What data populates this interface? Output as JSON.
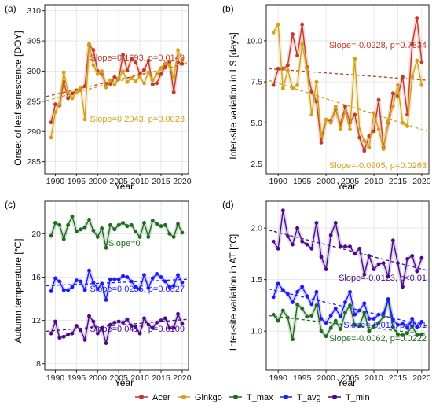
{
  "legend": {
    "items": [
      {
        "label": "Acer",
        "color": "#c0392b"
      },
      {
        "label": "Ginkgo",
        "color": "#d4a017"
      },
      {
        "label": "T_max",
        "color": "#1e6b1e"
      },
      {
        "label": "T_avg",
        "color": "#1a1aff"
      },
      {
        "label": "T_min",
        "color": "#4b0a8c"
      }
    ]
  },
  "chart_data": [
    {
      "panel": "(a)",
      "type": "line",
      "xlabel": "Year",
      "ylabel": "Onset of leaf senescence [DOY]",
      "xlim": [
        1987.5,
        2021.5
      ],
      "ylim": [
        283,
        311
      ],
      "xticks": [
        1990,
        1995,
        2000,
        2005,
        2010,
        2015,
        2020
      ],
      "yticks": [
        285,
        290,
        295,
        300,
        305,
        310
      ],
      "x": [
        1989,
        1990,
        1991,
        1992,
        1993,
        1994,
        1995,
        1996,
        1997,
        1998,
        1999,
        2000,
        2001,
        2002,
        2003,
        2004,
        2005,
        2006,
        2007,
        2008,
        2009,
        2010,
        2011,
        2012,
        2013,
        2014,
        2015,
        2016,
        2017,
        2018,
        2019,
        2020
      ],
      "series": [
        {
          "name": "Acer",
          "color": "#c0392b",
          "values": [
            291.5,
            294.5,
            294.3,
            298.2,
            295.5,
            296.3,
            296.8,
            297.0,
            297.5,
            304.3,
            303.5,
            300.0,
            299.5,
            297.8,
            297.9,
            299.0,
            298.7,
            302.7,
            300.1,
            302.0,
            301.5,
            299.5,
            300.2,
            301.7,
            297.8,
            298.0,
            299.5,
            300.8,
            301.5,
            296.5,
            301.5,
            301.2
          ]
        },
        {
          "name": "Ginkgo",
          "color": "#d4a017",
          "values": [
            289.0,
            293.2,
            294.5,
            299.8,
            296.5,
            295.5,
            296.5,
            297.3,
            292.0,
            304.5,
            301.0,
            299.5,
            300.0,
            297.3,
            298.5,
            297.8,
            298.8,
            300.0,
            298.2,
            298.8,
            298.3,
            299.0,
            298.0,
            299.8,
            298.5,
            299.5,
            300.5,
            301.3,
            301.0,
            299.0,
            303.5,
            301.8
          ]
        }
      ],
      "trends": [
        {
          "series": "Acer",
          "color": "#c0392b",
          "start": 295.8,
          "end": 301.2
        },
        {
          "series": "Ginkgo",
          "color": "#d4a017",
          "start": 295.1,
          "end": 301.4
        }
      ],
      "annotations": [
        {
          "text": "Slope=0.1693, p=0.0149",
          "color": "#c0392b"
        },
        {
          "text": "Slope=0.2043, p=0.0023",
          "color": "#d4a017"
        }
      ]
    },
    {
      "panel": "(b)",
      "type": "line",
      "xlabel": "Year",
      "ylabel": "Inter-site variation in LS [days]",
      "xlim": [
        1987.5,
        2021.5
      ],
      "ylim": [
        1.9,
        12.2
      ],
      "xticks": [
        1990,
        1995,
        2000,
        2005,
        2010,
        2015,
        2020
      ],
      "yticks": [
        2.5,
        5.0,
        7.5,
        10.0
      ],
      "yticklabels": [
        "2.5",
        "5.0",
        "7.5",
        "10.0"
      ],
      "x": [
        1989,
        1990,
        1991,
        1992,
        1993,
        1994,
        1995,
        1996,
        1997,
        1998,
        1999,
        2000,
        2001,
        2002,
        2003,
        2004,
        2005,
        2006,
        2007,
        2008,
        2009,
        2010,
        2011,
        2012,
        2013,
        2014,
        2015,
        2016,
        2017,
        2018,
        2019,
        2020
      ],
      "series": [
        {
          "name": "Acer",
          "color": "#c0392b",
          "values": [
            7.3,
            8.3,
            8.3,
            8.5,
            10.4,
            9.1,
            11.0,
            8.4,
            6.9,
            6.3,
            3.8,
            5.2,
            5.1,
            5.8,
            4.9,
            6.0,
            5.0,
            5.5,
            4.1,
            3.3,
            4.2,
            4.5,
            6.4,
            3.5,
            5.0,
            6.8,
            6.6,
            7.8,
            5.5,
            9.8,
            11.4,
            8.7
          ]
        },
        {
          "name": "Ginkgo",
          "color": "#d4a017",
          "values": [
            10.5,
            11.0,
            7.1,
            8.2,
            7.1,
            7.3,
            9.8,
            8.3,
            5.5,
            7.5,
            4.2,
            5.2,
            5.0,
            6.0,
            4.6,
            5.7,
            4.6,
            8.9,
            4.6,
            3.9,
            3.5,
            5.6,
            4.6,
            3.4,
            5.1,
            6.0,
            7.3,
            5.0,
            4.8,
            7.8,
            8.8,
            7.3
          ]
        }
      ],
      "trends": [
        {
          "series": "Acer",
          "color": "#c0392b",
          "start": 8.3,
          "end": 7.6
        },
        {
          "series": "Ginkgo",
          "color": "#d4a017",
          "start": 7.6,
          "end": 4.5
        }
      ],
      "annotations": [
        {
          "text": "Slope=-0.0228, p=0.7334",
          "color": "#c0392b"
        },
        {
          "text": "Slope=-0.0905, p=0.0263",
          "color": "#d4a017"
        }
      ]
    },
    {
      "panel": "(c)",
      "type": "line",
      "xlabel": "Year",
      "ylabel": "Autumn temperature [°C]",
      "xlim": [
        1987.5,
        2021.5
      ],
      "ylim": [
        7.4,
        23.0
      ],
      "xticks": [
        1990,
        1995,
        2000,
        2005,
        2010,
        2015,
        2020
      ],
      "yticks": [
        8,
        12,
        16,
        20
      ],
      "x": [
        1989,
        1990,
        1991,
        1992,
        1993,
        1994,
        1995,
        1996,
        1997,
        1998,
        1999,
        2000,
        2001,
        2002,
        2003,
        2004,
        2005,
        2006,
        2007,
        2008,
        2009,
        2010,
        2011,
        2012,
        2013,
        2014,
        2015,
        2016,
        2017,
        2018,
        2019,
        2020
      ],
      "series": [
        {
          "name": "T_max",
          "color": "#1e6b1e",
          "values": [
            19.8,
            21.0,
            20.8,
            19.5,
            20.8,
            21.6,
            20.2,
            20.4,
            20.6,
            21.3,
            20.3,
            19.7,
            20.5,
            18.7,
            20.8,
            20.4,
            20.8,
            21.0,
            20.7,
            20.8,
            20.2,
            19.7,
            21.0,
            19.7,
            21.2,
            20.9,
            20.7,
            20.8,
            20.0,
            19.7,
            20.9,
            20.1
          ]
        },
        {
          "name": "T_avg",
          "color": "#1a1aff",
          "values": [
            14.7,
            15.9,
            15.6,
            14.8,
            14.8,
            15.1,
            15.7,
            15.6,
            14.8,
            16.6,
            15.5,
            14.9,
            15.4,
            13.9,
            15.8,
            15.8,
            15.8,
            16.1,
            16.0,
            15.6,
            15.1,
            14.9,
            16.2,
            15.0,
            15.9,
            16.3,
            16.0,
            15.6,
            15.1,
            15.2,
            16.2,
            15.5
          ]
        },
        {
          "name": "T_min",
          "color": "#4b0a8c",
          "values": [
            10.8,
            11.9,
            10.4,
            10.5,
            10.7,
            10.8,
            11.5,
            11.1,
            10.2,
            12.4,
            11.9,
            10.8,
            11.3,
            9.9,
            11.6,
            11.8,
            11.9,
            11.8,
            12.1,
            11.5,
            11.4,
            10.8,
            12.2,
            11.6,
            11.3,
            11.8,
            12.0,
            12.2,
            11.3,
            11.3,
            12.6,
            11.7
          ]
        }
      ],
      "trends": [
        {
          "series": "T_avg",
          "color": "#1a1aff",
          "start": 15.2,
          "end": 15.8
        },
        {
          "series": "T_min",
          "color": "#4b0a8c",
          "start": 11.0,
          "end": 12.1
        }
      ],
      "annotations": [
        {
          "text": "Slope=0",
          "color": "#1e6b1e"
        },
        {
          "text": "Slope=0.0235, p=0.0827",
          "color": "#1a1aff"
        },
        {
          "text": "Slope=0.0417, p=0.0109",
          "color": "#4b0a8c"
        }
      ]
    },
    {
      "panel": "(d)",
      "type": "line",
      "xlabel": "Year",
      "ylabel": "Inter-site variation in AT [°C]",
      "xlim": [
        1987.5,
        2021.5
      ],
      "ylim": [
        0.62,
        2.26
      ],
      "xticks": [
        1990,
        1995,
        2000,
        2005,
        2010,
        2015,
        2020
      ],
      "yticks": [
        1.0,
        1.5,
        2.0
      ],
      "yticklabels": [
        "1.0",
        "1.5",
        "2.0"
      ],
      "x": [
        1989,
        1990,
        1991,
        1992,
        1993,
        1994,
        1995,
        1996,
        1997,
        1998,
        1999,
        2000,
        2001,
        2002,
        2003,
        2004,
        2005,
        2006,
        2007,
        2008,
        2009,
        2010,
        2011,
        2012,
        2013,
        2014,
        2015,
        2016,
        2017,
        2018,
        2019,
        2020
      ],
      "series": [
        {
          "name": "T_max",
          "color": "#1e6b1e",
          "values": [
            1.16,
            1.1,
            1.2,
            1.13,
            0.92,
            1.26,
            1.22,
            1.14,
            1.15,
            1.25,
            1.0,
            0.95,
            1.03,
            1.1,
            1.02,
            1.18,
            1.25,
            1.06,
            1.05,
            1.18,
            1.0,
            1.05,
            1.08,
            1.14,
            1.3,
            1.04,
            0.97,
            0.96,
            0.98,
            1.05,
            0.96,
            0.97
          ]
        },
        {
          "name": "T_avg",
          "color": "#1a1aff",
          "values": [
            1.33,
            1.46,
            1.4,
            1.36,
            1.28,
            1.38,
            1.43,
            1.34,
            1.26,
            1.38,
            1.12,
            1.08,
            1.15,
            1.22,
            1.14,
            1.28,
            1.38,
            1.16,
            1.2,
            1.27,
            1.12,
            1.12,
            1.16,
            1.17,
            1.31,
            1.11,
            1.06,
            1.07,
            1.03,
            1.12,
            1.04,
            1.09
          ]
        },
        {
          "name": "T_min",
          "color": "#4b0a8c",
          "values": [
            1.87,
            1.8,
            2.17,
            1.92,
            1.84,
            2.0,
            1.87,
            1.84,
            1.8,
            2.05,
            1.72,
            1.6,
            1.93,
            2.05,
            1.82,
            1.82,
            1.82,
            1.75,
            1.8,
            1.55,
            1.73,
            1.6,
            1.65,
            1.66,
            1.53,
            1.88,
            1.66,
            1.43,
            1.7,
            1.73,
            1.58,
            1.71
          ]
        }
      ],
      "trends": [
        {
          "series": "T_max",
          "color": "#1e6b1e",
          "start": 1.15,
          "end": 0.97
        },
        {
          "series": "T_avg",
          "color": "#1a1aff",
          "start": 1.41,
          "end": 1.05
        },
        {
          "series": "T_min",
          "color": "#4b0a8c",
          "start": 1.98,
          "end": 1.59
        }
      ],
      "annotations": [
        {
          "text": "Slope=-0.0123, p<0.01",
          "color": "#4b0a8c"
        },
        {
          "text": "Slope=-0.012, p<0.01",
          "color": "#1a1aff"
        },
        {
          "text": "Slope=-0.0062, p=0.0222",
          "color": "#1e6b1e"
        }
      ]
    }
  ]
}
